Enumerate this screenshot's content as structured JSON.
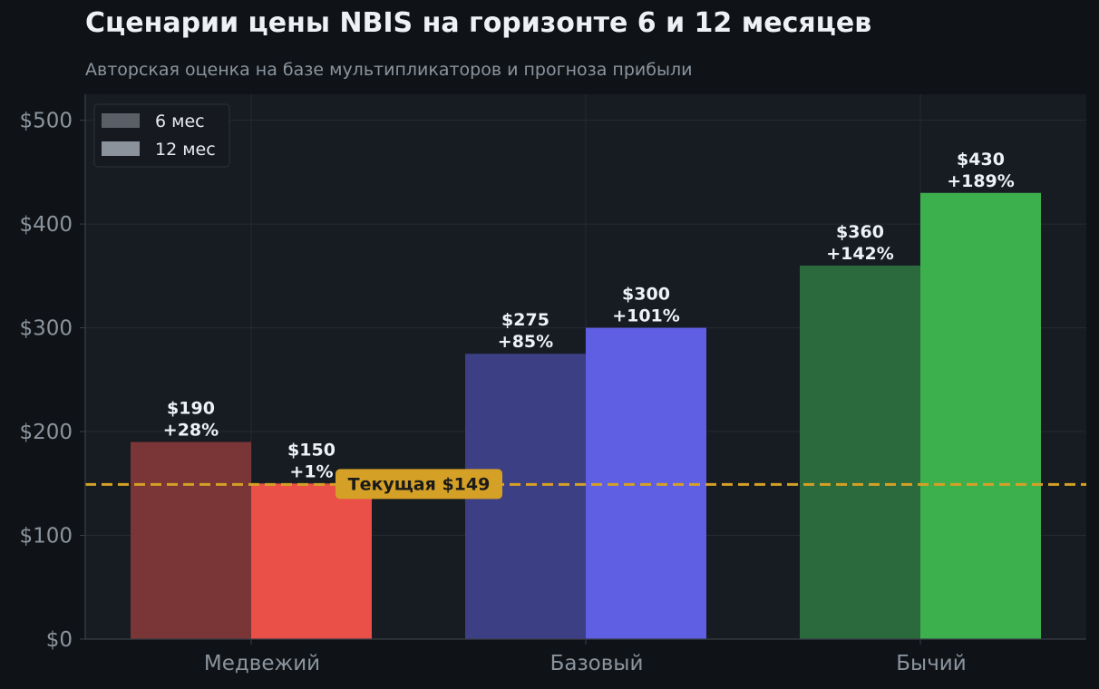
{
  "chart_data": {
    "type": "bar",
    "title": "Сценарии цены NBIS на горизонте 6 и 12 месяцев",
    "subtitle": "Авторская оценка на базе мультипликаторов и прогноза прибыли",
    "xlabel": "",
    "ylabel": "",
    "categories": [
      "Медвежий",
      "Базовый",
      "Бычий"
    ],
    "series": [
      {
        "name": "6 мес",
        "values": [
          190,
          275,
          360
        ],
        "labels": [
          "$190",
          "$275",
          "$360"
        ],
        "changes": [
          "+28%",
          "+85%",
          "+142%"
        ],
        "colors": [
          "#7a3536",
          "#3d3f85",
          "#2a6a3c"
        ]
      },
      {
        "name": "12 мес",
        "values": [
          150,
          300,
          430
        ],
        "labels": [
          "$150",
          "$300",
          "$430"
        ],
        "changes": [
          "+1%",
          "+101%",
          "+189%"
        ],
        "colors": [
          "#ea4f48",
          "#5f5fe4",
          "#3cb04c"
        ]
      }
    ],
    "ylim": [
      0,
      525
    ],
    "yticks": [
      0,
      100,
      200,
      300,
      400,
      500
    ],
    "ytick_labels": [
      "$0",
      "$100",
      "$200",
      "$300",
      "$400",
      "$500"
    ],
    "reference_line": {
      "value": 149,
      "label": "Текущая $149",
      "color": "#d4a026"
    },
    "legend": {
      "position": "top-left",
      "entries": [
        "6 мес",
        "12 мес"
      ],
      "swatch_colors": [
        "#5a5e66",
        "#8b929c"
      ]
    },
    "grid": true
  }
}
